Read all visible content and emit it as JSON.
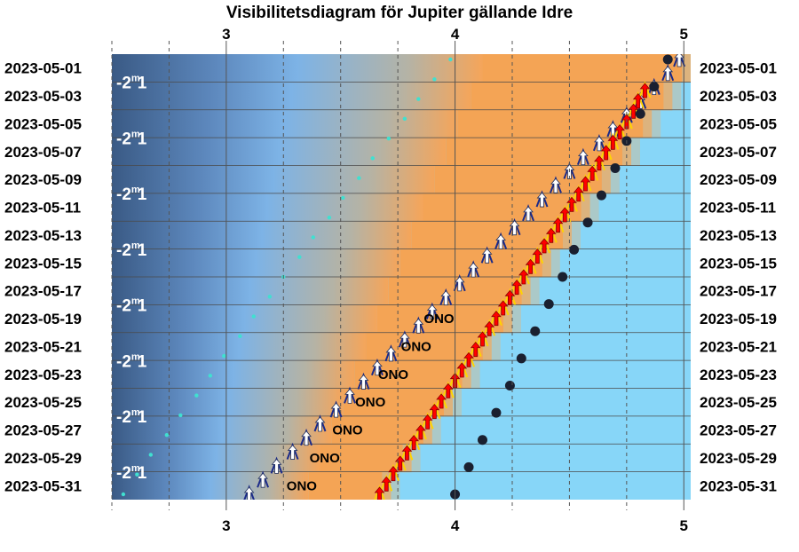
{
  "chart_data": {
    "type": "scatter",
    "title": "Visibilitetsdiagram för Jupiter gällande Idre",
    "x_ticks": [
      "3",
      "4",
      "5"
    ],
    "xlim": [
      2.5,
      5.03
    ],
    "y_labels": [
      "2023-05-01",
      "2023-05-03",
      "2023-05-05",
      "2023-05-07",
      "2023-05-09",
      "2023-05-11",
      "2023-05-13",
      "2023-05-15",
      "2023-05-17",
      "2023-05-19",
      "2023-05-21",
      "2023-05-23",
      "2023-05-25",
      "2023-05-27",
      "2023-05-29",
      "2023-05-31"
    ],
    "magnitude": {
      "value": "-2",
      "sup": "m",
      "tail": "1"
    },
    "direction_label": "ONO",
    "dark_end": [
      2.5,
      2.52,
      2.55,
      2.58,
      2.61,
      2.64,
      2.67,
      2.7,
      2.73,
      2.76,
      2.79,
      2.82,
      2.85,
      2.88,
      2.91,
      2.94
    ],
    "orange_start": [
      4.12,
      4.07,
      4.01,
      3.96,
      3.91,
      3.86,
      3.81,
      3.76,
      3.71,
      3.66,
      3.61,
      3.56,
      3.51,
      3.46,
      3.41,
      3.36
    ],
    "twilight_edge": [
      5.03,
      4.95,
      4.86,
      4.77,
      4.68,
      4.59,
      4.51,
      4.42,
      4.33,
      4.25,
      4.16,
      4.07,
      3.99,
      3.9,
      3.81,
      3.72
    ],
    "series": [
      {
        "kind": "rise_white",
        "color": "#ffffff",
        "values": [
          4.98,
          4.93,
          4.87,
          4.81,
          4.75,
          4.69,
          4.63,
          4.56,
          4.5,
          4.44,
          4.38,
          4.32,
          4.26,
          4.2,
          4.14,
          4.08,
          4.02,
          3.96,
          3.9,
          3.84,
          3.78,
          3.72,
          3.66,
          3.6,
          3.54,
          3.48,
          3.41,
          3.35,
          3.29,
          3.22,
          3.16,
          3.1
        ]
      },
      {
        "kind": "rise_red",
        "color": "#ff0000",
        "values": [
          null,
          null,
          null,
          4.83,
          4.8,
          4.78,
          4.75,
          4.72,
          4.69,
          4.66,
          4.63,
          4.6,
          4.57,
          4.54,
          4.51,
          4.48,
          4.45,
          4.42,
          4.39,
          4.36,
          4.33,
          4.3,
          4.27,
          4.24,
          4.21,
          4.18,
          4.15,
          4.12,
          4.09,
          4.06,
          4.03,
          4.0,
          3.97,
          3.94,
          3.91,
          3.88,
          3.85,
          3.82,
          3.79,
          3.76,
          3.73,
          3.7,
          3.67
        ]
      },
      {
        "kind": "cyan_dots",
        "color": "#40e0d0",
        "values": [
          3.98,
          3.91,
          3.84,
          3.78,
          3.71,
          3.64,
          3.58,
          3.51,
          3.45,
          3.38,
          3.32,
          3.25,
          3.19,
          3.12,
          3.06,
          2.99,
          2.93,
          2.87,
          2.8,
          2.74,
          2.67,
          2.61,
          2.55
        ]
      },
      {
        "kind": "black_dots",
        "color": "#1a2030",
        "values": [
          4.93,
          4.87,
          4.81,
          4.75,
          4.7,
          4.64,
          4.58,
          4.52,
          4.47,
          4.41,
          4.35,
          4.29,
          4.24,
          4.18,
          4.12,
          4.06,
          4.0
        ]
      }
    ],
    "grid": true
  }
}
